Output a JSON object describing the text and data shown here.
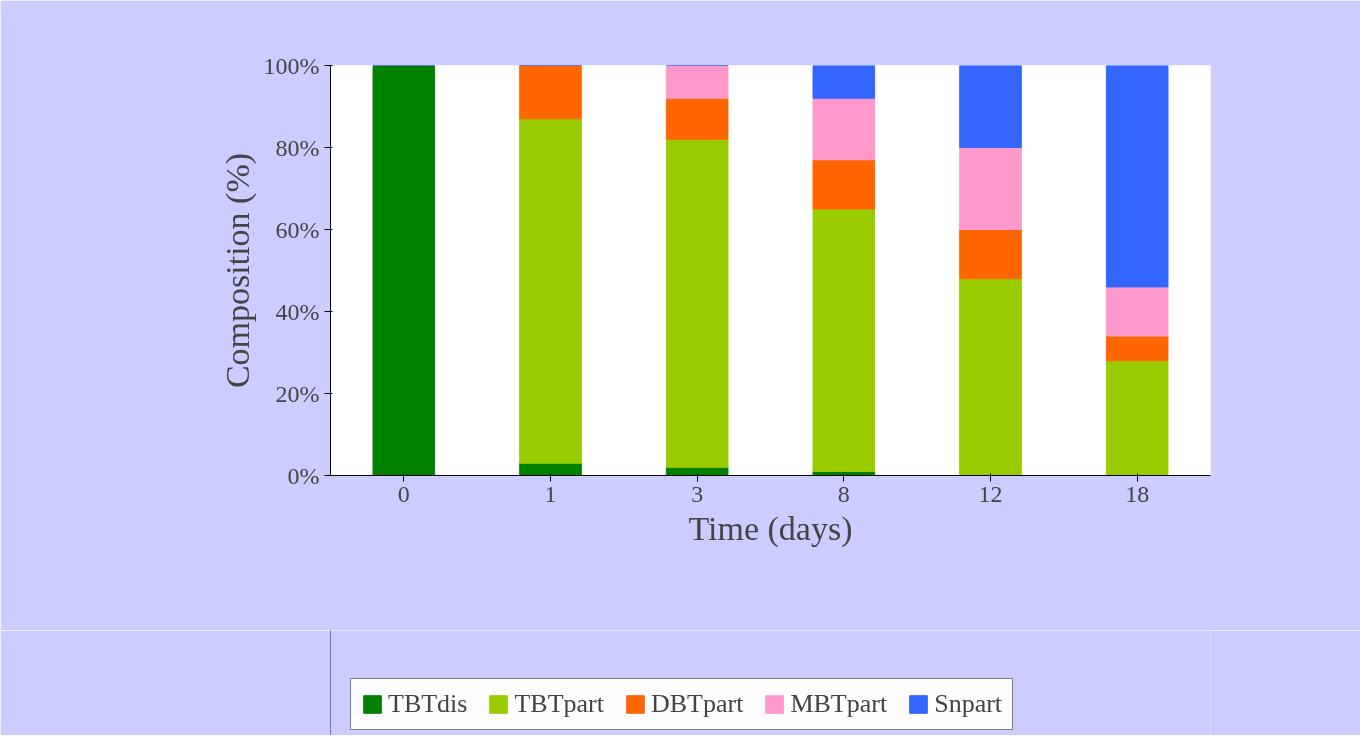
{
  "chart_data": {
    "type": "bar",
    "stacked": true,
    "xlabel": "Time (days)",
    "ylabel": "Composition (%)",
    "categories": [
      "0",
      "1",
      "3",
      "8",
      "12",
      "18"
    ],
    "series": [
      {
        "name": "TBTdis",
        "color": "#008000",
        "values": [
          100,
          3,
          2,
          1,
          0,
          0
        ]
      },
      {
        "name": "TBTpart",
        "color": "#99cc00",
        "values": [
          0,
          84,
          80,
          64,
          48,
          28
        ]
      },
      {
        "name": "DBTpart",
        "color": "#ff6600",
        "values": [
          0,
          13,
          10,
          12,
          12,
          6
        ]
      },
      {
        "name": "MBTpart",
        "color": "#ff99cc",
        "values": [
          0,
          0,
          8,
          15,
          20,
          12
        ]
      },
      {
        "name": "Snpart",
        "color": "#3366ff",
        "values": [
          0,
          0,
          0,
          8,
          20,
          54
        ]
      }
    ],
    "ylim": [
      0,
      100
    ],
    "yticks": [
      {
        "value": 0,
        "label": "0%"
      },
      {
        "value": 20,
        "label": "20%"
      },
      {
        "value": 40,
        "label": "40%"
      },
      {
        "value": 60,
        "label": "60%"
      },
      {
        "value": 80,
        "label": "80%"
      },
      {
        "value": 100,
        "label": "100%"
      }
    ],
    "grid": false,
    "legend": "bottom"
  }
}
